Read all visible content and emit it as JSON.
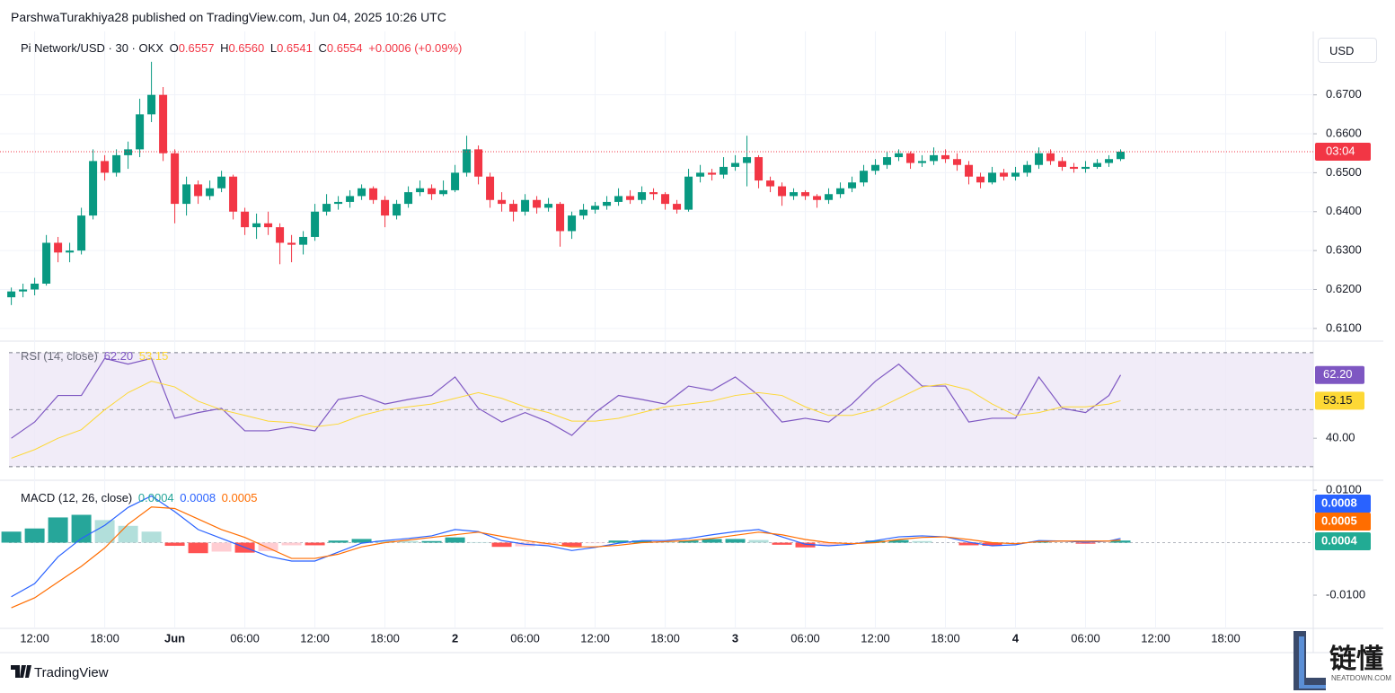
{
  "header": {
    "published": "ParshwaTurakhiya28 published on TradingView.com, Jun 04, 2025 10:26 UTC"
  },
  "footer": {
    "brand": "TradingView"
  },
  "watermark": {
    "title": "链懂",
    "site": "NEATDOWN.COM"
  },
  "chart_data": [
    {
      "type": "candlestick",
      "symbol": "Pi Network/USD · 30 · OKX",
      "ohlc_names": [
        "O",
        "H",
        "L",
        "C"
      ],
      "ohlc_values": [
        0.6557,
        0.656,
        0.6541,
        0.6554
      ],
      "ohlc_value_labels": [
        "0.6557",
        "0.6560",
        "0.6541",
        "0.6554"
      ],
      "change_label": "+0.0006 (+0.09%)",
      "currency": "USD",
      "up_color": "#089981",
      "down_color": "#f23645",
      "grid": true,
      "last_price": 0.6554,
      "countdown": "03:04",
      "ylim": [
        0.6072,
        0.6863
      ],
      "yticks": [
        {
          "value": 0.61,
          "label": "0.6100"
        },
        {
          "value": 0.62,
          "label": "0.6200"
        },
        {
          "value": 0.63,
          "label": "0.6300"
        },
        {
          "value": 0.64,
          "label": "0.6400"
        },
        {
          "value": 0.65,
          "label": "0.6500"
        },
        {
          "value": 0.66,
          "label": "0.6600"
        },
        {
          "value": 0.67,
          "label": "0.6700"
        }
      ],
      "x": [
        10,
        11,
        12,
        13,
        14,
        15,
        16,
        17,
        18,
        19,
        20,
        21,
        22,
        23,
        24,
        25,
        26,
        27,
        28,
        29,
        30,
        31,
        32,
        33,
        34,
        35,
        36,
        37,
        38,
        39,
        40,
        41,
        42,
        43,
        44,
        45,
        46,
        47,
        48,
        49,
        50,
        51,
        52,
        53,
        54,
        55,
        56,
        57,
        58,
        59,
        60,
        61,
        62,
        63,
        64,
        65,
        66,
        67,
        68,
        69,
        70,
        71,
        72,
        73,
        74,
        75,
        76,
        77,
        78,
        79,
        80,
        81,
        82,
        83,
        84,
        85,
        86,
        87,
        88,
        89,
        90,
        91,
        92,
        93,
        94,
        95,
        96,
        97,
        98,
        99,
        100,
        101,
        102,
        103,
        104,
        105
      ],
      "candles": [
        [
          0.618,
          0.6205,
          0.616,
          0.6195
        ],
        [
          0.6195,
          0.6215,
          0.618,
          0.62
        ],
        [
          0.62,
          0.623,
          0.6185,
          0.6215
        ],
        [
          0.6215,
          0.634,
          0.621,
          0.632
        ],
        [
          0.632,
          0.6335,
          0.627,
          0.6295
        ],
        [
          0.6295,
          0.632,
          0.627,
          0.63
        ],
        [
          0.63,
          0.641,
          0.629,
          0.639
        ],
        [
          0.639,
          0.656,
          0.638,
          0.653
        ],
        [
          0.653,
          0.6545,
          0.648,
          0.65
        ],
        [
          0.65,
          0.656,
          0.649,
          0.6545
        ],
        [
          0.6545,
          0.658,
          0.651,
          0.656
        ],
        [
          0.656,
          0.669,
          0.654,
          0.665
        ],
        [
          0.665,
          0.6785,
          0.663,
          0.67
        ],
        [
          0.67,
          0.672,
          0.653,
          0.655
        ],
        [
          0.655,
          0.656,
          0.637,
          0.642
        ],
        [
          0.642,
          0.649,
          0.639,
          0.647
        ],
        [
          0.647,
          0.648,
          0.642,
          0.644
        ],
        [
          0.644,
          0.648,
          0.643,
          0.646
        ],
        [
          0.646,
          0.6505,
          0.645,
          0.649
        ],
        [
          0.649,
          0.6495,
          0.638,
          0.64
        ],
        [
          0.64,
          0.641,
          0.634,
          0.636
        ],
        [
          0.636,
          0.6395,
          0.633,
          0.637
        ],
        [
          0.637,
          0.64,
          0.634,
          0.636
        ],
        [
          0.636,
          0.637,
          0.6265,
          0.632
        ],
        [
          0.632,
          0.634,
          0.627,
          0.6315
        ],
        [
          0.6315,
          0.635,
          0.629,
          0.6335
        ],
        [
          0.6335,
          0.642,
          0.6325,
          0.64
        ],
        [
          0.64,
          0.6445,
          0.639,
          0.642
        ],
        [
          0.642,
          0.644,
          0.6405,
          0.6425
        ],
        [
          0.6425,
          0.6455,
          0.641,
          0.644
        ],
        [
          0.644,
          0.647,
          0.643,
          0.646
        ],
        [
          0.646,
          0.6465,
          0.642,
          0.643
        ],
        [
          0.643,
          0.644,
          0.636,
          0.639
        ],
        [
          0.639,
          0.643,
          0.638,
          0.642
        ],
        [
          0.642,
          0.6465,
          0.641,
          0.645
        ],
        [
          0.645,
          0.648,
          0.644,
          0.646
        ],
        [
          0.646,
          0.647,
          0.643,
          0.6445
        ],
        [
          0.6445,
          0.648,
          0.644,
          0.6455
        ],
        [
          0.6455,
          0.652,
          0.645,
          0.65
        ],
        [
          0.65,
          0.6595,
          0.649,
          0.656
        ],
        [
          0.656,
          0.657,
          0.647,
          0.649
        ],
        [
          0.649,
          0.65,
          0.641,
          0.643
        ],
        [
          0.643,
          0.645,
          0.64,
          0.642
        ],
        [
          0.642,
          0.643,
          0.6375,
          0.64
        ],
        [
          0.64,
          0.6445,
          0.639,
          0.643
        ],
        [
          0.643,
          0.644,
          0.6395,
          0.641
        ],
        [
          0.641,
          0.6435,
          0.64,
          0.642
        ],
        [
          0.642,
          0.6425,
          0.631,
          0.635
        ],
        [
          0.635,
          0.64,
          0.633,
          0.639
        ],
        [
          0.639,
          0.642,
          0.638,
          0.6405
        ],
        [
          0.6405,
          0.6425,
          0.6395,
          0.6415
        ],
        [
          0.6415,
          0.644,
          0.6405,
          0.6425
        ],
        [
          0.6425,
          0.646,
          0.6415,
          0.644
        ],
        [
          0.644,
          0.6455,
          0.642,
          0.643
        ],
        [
          0.643,
          0.6465,
          0.642,
          0.645
        ],
        [
          0.645,
          0.646,
          0.643,
          0.6445
        ],
        [
          0.6445,
          0.645,
          0.6405,
          0.642
        ],
        [
          0.642,
          0.643,
          0.6395,
          0.6405
        ],
        [
          0.6405,
          0.651,
          0.64,
          0.649
        ],
        [
          0.649,
          0.652,
          0.6475,
          0.65
        ],
        [
          0.65,
          0.651,
          0.648,
          0.6495
        ],
        [
          0.6495,
          0.654,
          0.6485,
          0.6515
        ],
        [
          0.6515,
          0.6545,
          0.6505,
          0.6525
        ],
        [
          0.6525,
          0.6595,
          0.6465,
          0.654
        ],
        [
          0.654,
          0.6545,
          0.646,
          0.648
        ],
        [
          0.648,
          0.649,
          0.645,
          0.6465
        ],
        [
          0.6465,
          0.6475,
          0.6415,
          0.644
        ],
        [
          0.644,
          0.646,
          0.643,
          0.645
        ],
        [
          0.645,
          0.6455,
          0.643,
          0.644
        ],
        [
          0.644,
          0.6445,
          0.641,
          0.643
        ],
        [
          0.643,
          0.646,
          0.642,
          0.6445
        ],
        [
          0.6445,
          0.6475,
          0.6435,
          0.646
        ],
        [
          0.646,
          0.649,
          0.645,
          0.6475
        ],
        [
          0.6475,
          0.652,
          0.6465,
          0.6505
        ],
        [
          0.6505,
          0.6535,
          0.6495,
          0.652
        ],
        [
          0.652,
          0.6555,
          0.651,
          0.654
        ],
        [
          0.654,
          0.656,
          0.653,
          0.655
        ],
        [
          0.655,
          0.6555,
          0.651,
          0.6525
        ],
        [
          0.6525,
          0.6545,
          0.6515,
          0.653
        ],
        [
          0.653,
          0.6565,
          0.652,
          0.6545
        ],
        [
          0.6545,
          0.656,
          0.6525,
          0.6535
        ],
        [
          0.6535,
          0.655,
          0.6505,
          0.652
        ],
        [
          0.652,
          0.653,
          0.647,
          0.649
        ],
        [
          0.649,
          0.65,
          0.646,
          0.6475
        ],
        [
          0.6475,
          0.6515,
          0.647,
          0.65
        ],
        [
          0.65,
          0.651,
          0.648,
          0.649
        ],
        [
          0.649,
          0.6515,
          0.648,
          0.65
        ],
        [
          0.65,
          0.653,
          0.649,
          0.652
        ],
        [
          0.652,
          0.6565,
          0.651,
          0.655
        ],
        [
          0.655,
          0.656,
          0.652,
          0.653
        ],
        [
          0.653,
          0.654,
          0.6505,
          0.6515
        ],
        [
          0.6515,
          0.6525,
          0.65,
          0.651
        ],
        [
          0.651,
          0.653,
          0.65,
          0.6515
        ],
        [
          0.6515,
          0.6535,
          0.651,
          0.6525
        ],
        [
          0.6525,
          0.6545,
          0.6515,
          0.6535
        ],
        [
          0.6535,
          0.656,
          0.653,
          0.6554
        ]
      ]
    },
    {
      "type": "line",
      "title": "RSI (14, close)",
      "band": [
        30,
        70
      ],
      "band_color": "#ede7f6",
      "midline": 50,
      "ylim": [
        26.2,
        72.5
      ],
      "yticks": [
        {
          "value": 40,
          "label": "40.00"
        }
      ],
      "x": [
        10,
        12,
        14,
        16,
        18,
        20,
        22,
        24,
        26,
        28,
        30,
        32,
        34,
        36,
        38,
        40,
        42,
        44,
        46,
        48,
        50,
        52,
        54,
        56,
        58,
        60,
        62,
        64,
        66,
        68,
        70,
        72,
        74,
        76,
        78,
        80,
        82,
        84,
        86,
        88,
        90,
        92,
        94,
        96,
        98,
        100,
        102,
        104,
        105
      ],
      "series": [
        {
          "color": "#7e57c2",
          "text_color": "#ffffff",
          "value_label": "62.20",
          "values": [
            40,
            45.7,
            55,
            55,
            68,
            66,
            68,
            47,
            49,
            50.5,
            42.6,
            42.6,
            44,
            42.6,
            53.6,
            55,
            52,
            53.6,
            55,
            61.5,
            50.5,
            45.7,
            49,
            45.7,
            41,
            49,
            55,
            53.6,
            52,
            58.3,
            56.8,
            61.5,
            55,
            45.7,
            47,
            45.7,
            52,
            60,
            66,
            58.3,
            58.3,
            45.7,
            47,
            47,
            61.5,
            50.5,
            49,
            55,
            62.2
          ]
        },
        {
          "color": "#fdd835",
          "text_color": "#131722",
          "value_label": "53.15",
          "values": [
            33,
            36,
            40,
            43,
            50,
            56,
            60,
            58,
            53,
            50,
            48,
            46,
            45.5,
            44,
            45,
            48,
            50,
            51,
            52,
            54,
            56,
            54,
            51,
            49,
            46,
            46,
            47,
            49,
            51,
            52,
            53,
            55,
            56,
            55,
            51,
            48,
            48,
            50,
            54,
            58,
            59,
            57,
            52,
            48,
            49,
            51,
            51,
            52,
            53.15
          ]
        }
      ]
    },
    {
      "type": "macd",
      "title": "MACD (12, 26, close)",
      "ylim": [
        -0.01632,
        0.01137
      ],
      "yticks": [
        {
          "value": 0.01,
          "label": "0.0100"
        },
        {
          "value": -0.01,
          "label": "-0.0100"
        }
      ],
      "xlim": [
        9.8,
        121.5
      ],
      "xticks": [
        {
          "value": 12,
          "label": "12:00"
        },
        {
          "value": 18,
          "label": "18:00"
        },
        {
          "value": 24,
          "label": "Jun"
        },
        {
          "value": 30,
          "label": "06:00"
        },
        {
          "value": 36,
          "label": "12:00"
        },
        {
          "value": 42,
          "label": "18:00"
        },
        {
          "value": 48,
          "label": "2"
        },
        {
          "value": 54,
          "label": "06:00"
        },
        {
          "value": 60,
          "label": "12:00"
        },
        {
          "value": 66,
          "label": "18:00"
        },
        {
          "value": 72,
          "label": "3"
        },
        {
          "value": 78,
          "label": "06:00"
        },
        {
          "value": 84,
          "label": "12:00"
        },
        {
          "value": 90,
          "label": "18:00"
        },
        {
          "value": 96,
          "label": "4"
        },
        {
          "value": 102,
          "label": "06:00"
        },
        {
          "value": 108,
          "label": "12:00"
        },
        {
          "value": 114,
          "label": "18:00"
        }
      ],
      "x": [
        10,
        12,
        14,
        16,
        18,
        20,
        22,
        24,
        26,
        28,
        30,
        32,
        34,
        36,
        38,
        40,
        42,
        44,
        46,
        48,
        50,
        52,
        54,
        56,
        58,
        60,
        62,
        64,
        66,
        68,
        70,
        72,
        74,
        76,
        78,
        80,
        82,
        84,
        86,
        88,
        90,
        92,
        94,
        96,
        98,
        100,
        102,
        104,
        105
      ],
      "histogram": {
        "value_label": "0.0004",
        "badge_color": "#22ab94",
        "colors": [
          "#26a69a",
          "#b2dfdb",
          "#ff5252",
          "#ffcdd2"
        ],
        "values": [
          0.0021,
          0.0027,
          0.0048,
          0.0053,
          0.0043,
          0.0032,
          0.0021,
          -0.0006,
          -0.002,
          -0.0017,
          -0.0019,
          -0.0016,
          -0.0005,
          -0.0005,
          0.0004,
          0.0007,
          0.0004,
          0.0003,
          0.0003,
          0.001,
          0.0001,
          -0.0008,
          -0.0007,
          -0.0004,
          -0.0007,
          -0.0001,
          0.0004,
          0.0004,
          0.0002,
          0.0004,
          0.0007,
          0.0007,
          0.0005,
          -0.0004,
          -0.0009,
          -0.0006,
          -0.0001,
          0.0004,
          0.0005,
          0.0003,
          0,
          -0.0005,
          -0.0006,
          -0.0002,
          0.0002,
          0,
          -0.0002,
          0,
          0.0004
        ]
      },
      "series": [
        {
          "color": "#2962ff",
          "value_label": "0.0008",
          "values": [
            -0.0103,
            -0.0078,
            -0.0027,
            0.0008,
            0.0033,
            0.0067,
            0.0089,
            0.0059,
            0.0025,
            0.0008,
            -0.0009,
            -0.0026,
            -0.0035,
            -0.0035,
            -0.0018,
            -0.0001,
            0.0004,
            0.0008,
            0.0013,
            0.0025,
            0.0021,
            0.0004,
            -0.0003,
            -0.0006,
            -0.0015,
            -0.0009,
            -0.0001,
            0.0004,
            0.0004,
            0.0008,
            0.0015,
            0.0021,
            0.0025,
            0.0011,
            -0.0003,
            -0.0006,
            -0.0003,
            0.0004,
            0.0011,
            0.0013,
            0.0011,
            0.0001,
            -0.0006,
            -0.0004,
            0.0004,
            0.0003,
            0.0001,
            0.0003,
            0.0008
          ]
        },
        {
          "color": "#ff6d00",
          "value_label": "0.0005",
          "values": [
            -0.0124,
            -0.0105,
            -0.0075,
            -0.0045,
            -0.001,
            0.0035,
            0.0068,
            0.0065,
            0.0045,
            0.0025,
            0.001,
            -0.001,
            -0.003,
            -0.003,
            -0.0022,
            -0.0008,
            0,
            0.0005,
            0.001,
            0.0015,
            0.002,
            0.0012,
            0.0004,
            -0.0002,
            -0.0008,
            -0.0008,
            -0.0005,
            0,
            0.0002,
            0.0004,
            0.0008,
            0.0014,
            0.002,
            0.0015,
            0.0006,
            0,
            -0.0002,
            0,
            0.0006,
            0.001,
            0.0011,
            0.0006,
            0,
            -0.0002,
            0.0002,
            0.0003,
            0.0003,
            0.0003,
            0.0005
          ]
        }
      ]
    }
  ]
}
